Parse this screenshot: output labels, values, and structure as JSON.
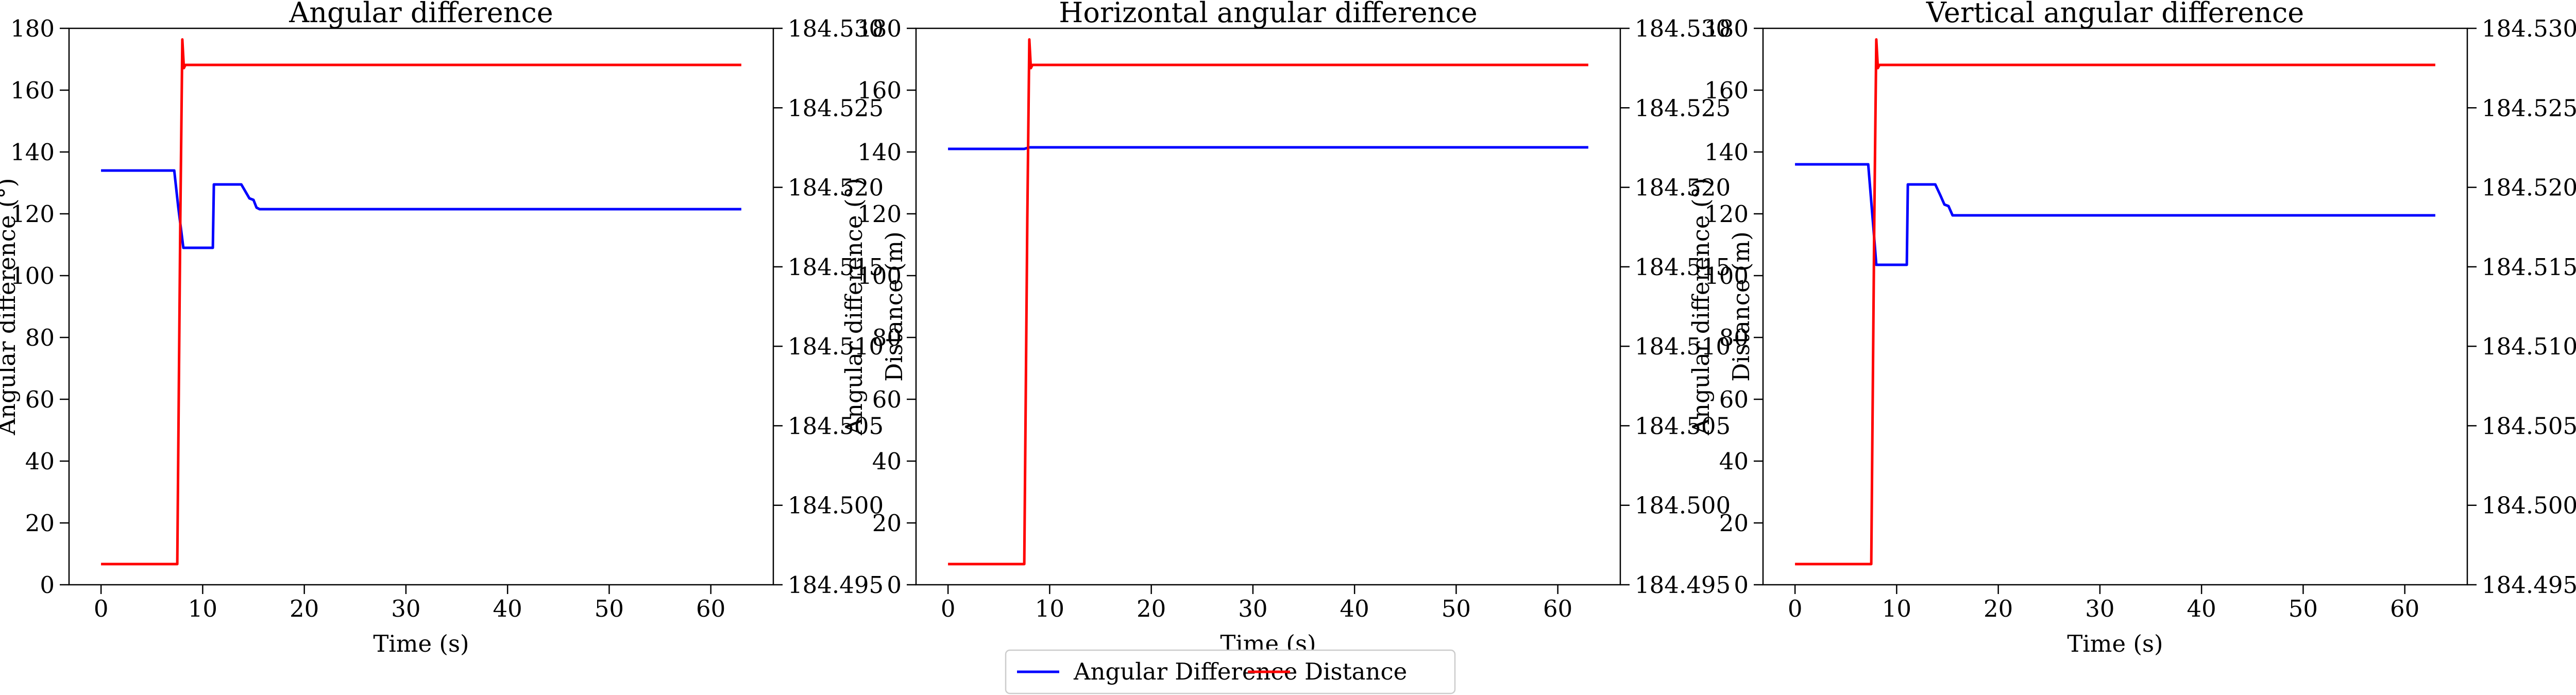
{
  "colors": {
    "angular": "#0000ff",
    "distance": "#ff0000",
    "axis": "#000000"
  },
  "legend": {
    "placement": "bottom-center",
    "items": [
      {
        "key": "angular",
        "label": "Angular Difference"
      },
      {
        "key": "distance",
        "label": "Distance"
      }
    ]
  },
  "chart_data": [
    {
      "type": "line",
      "title": "Angular difference",
      "xlabel": "Time (s)",
      "ylabel": "Angular difference (°)",
      "y2label": "Distance (m)",
      "xlim": [
        -3.15,
        66.15
      ],
      "ylim": [
        0,
        180
      ],
      "y2lim": [
        184.495,
        184.53
      ],
      "xticks": [
        0,
        10,
        20,
        30,
        40,
        50,
        60
      ],
      "yticks": [
        0,
        20,
        40,
        60,
        80,
        100,
        120,
        140,
        160,
        180
      ],
      "y2ticks": [
        "184.495",
        "184.500",
        "184.505",
        "184.510",
        "184.515",
        "184.520",
        "184.525",
        "184.530"
      ],
      "grid": false,
      "series": [
        {
          "name": "Angular Difference",
          "axis": "left",
          "color": "#0000ff",
          "x": [
            0,
            7.2,
            7.6,
            8.1,
            11.0,
            11.1,
            13.8,
            14.6,
            15.0,
            15.3,
            15.6,
            63
          ],
          "y": [
            134,
            134,
            122,
            109,
            109,
            129.5,
            129.5,
            125,
            124.5,
            122,
            121.5,
            121.5
          ]
        },
        {
          "name": "Distance",
          "axis": "right",
          "color": "#ff0000",
          "x": [
            0,
            7.5,
            7.8,
            8.0,
            8.15,
            8.3,
            63
          ],
          "y": [
            184.4963,
            184.4963,
            184.518,
            184.5293,
            184.5275,
            184.5277,
            184.5277
          ]
        }
      ]
    },
    {
      "type": "line",
      "title": "Horizontal angular difference",
      "xlabel": "Time (s)",
      "ylabel": "Angular difference (°)",
      "y2label": "Distance (m)",
      "xlim": [
        -3.15,
        66.15
      ],
      "ylim": [
        0,
        180
      ],
      "y2lim": [
        184.495,
        184.53
      ],
      "xticks": [
        0,
        10,
        20,
        30,
        40,
        50,
        60
      ],
      "yticks": [
        0,
        20,
        40,
        60,
        80,
        100,
        120,
        140,
        160,
        180
      ],
      "y2ticks": [
        "184.495",
        "184.500",
        "184.505",
        "184.510",
        "184.515",
        "184.520",
        "184.525",
        "184.530"
      ],
      "grid": false,
      "series": [
        {
          "name": "Angular Difference",
          "axis": "left",
          "color": "#0000ff",
          "x": [
            0,
            7.5,
            8.0,
            63
          ],
          "y": [
            141,
            141,
            141.5,
            141.5
          ]
        },
        {
          "name": "Distance",
          "axis": "right",
          "color": "#ff0000",
          "x": [
            0,
            7.5,
            7.8,
            8.0,
            8.15,
            8.3,
            63
          ],
          "y": [
            184.4963,
            184.4963,
            184.518,
            184.5293,
            184.5275,
            184.5277,
            184.5277
          ]
        }
      ]
    },
    {
      "type": "line",
      "title": "Vertical angular difference",
      "xlabel": "Time (s)",
      "ylabel": "Angular difference (°)",
      "y2label": "Distance (m)",
      "xlim": [
        -3.15,
        66.15
      ],
      "ylim": [
        0,
        180
      ],
      "y2lim": [
        184.495,
        184.53
      ],
      "xticks": [
        0,
        10,
        20,
        30,
        40,
        50,
        60
      ],
      "yticks": [
        0,
        20,
        40,
        60,
        80,
        100,
        120,
        140,
        160,
        180
      ],
      "y2ticks": [
        "184.495",
        "184.500",
        "184.505",
        "184.510",
        "184.515",
        "184.520",
        "184.525",
        "184.530"
      ],
      "grid": false,
      "series": [
        {
          "name": "Angular Difference",
          "axis": "left",
          "color": "#0000ff",
          "x": [
            0,
            7.2,
            7.7,
            8.0,
            11.0,
            11.1,
            13.8,
            14.3,
            14.7,
            15.1,
            15.5,
            63
          ],
          "y": [
            136,
            136,
            116,
            103.5,
            103.5,
            129.5,
            129.5,
            126,
            123,
            122.5,
            119.5,
            119.5
          ]
        },
        {
          "name": "Distance",
          "axis": "right",
          "color": "#ff0000",
          "x": [
            0,
            7.5,
            7.8,
            8.0,
            8.15,
            8.3,
            63
          ],
          "y": [
            184.4963,
            184.4963,
            184.518,
            184.5293,
            184.5275,
            184.5277,
            184.5277
          ]
        }
      ]
    }
  ]
}
